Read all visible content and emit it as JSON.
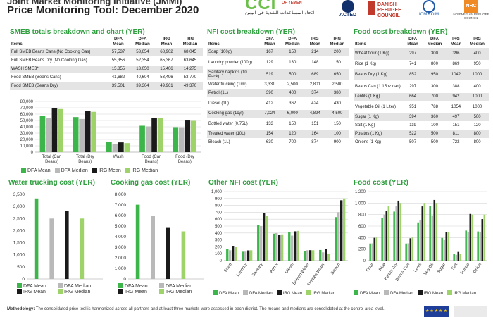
{
  "header": {
    "title_line1": "Joint Market Monitoring Initiative (JMMI)",
    "title_line2": "Price Monitoring Tool: December 2020",
    "cci_logo": "CCI",
    "cci_sub": "OF YEMEN",
    "cci_arabic": "اتحاد المساعدات النقدية في اليمن",
    "acted": "ACTED",
    "drc": "DANISH REFUGEE COUNCIL",
    "iom": "IOM • OIM",
    "nrc": "NRC",
    "nrc_sub": "NORWEGIAN REFUGEE COUNCIL"
  },
  "colors": {
    "dfa_mean": "#3cb54a",
    "dfa_median": "#b9b9b9",
    "irg_mean": "#1a1a1a",
    "irg_median": "#9ed36a",
    "section_title": "#2e9e3e"
  },
  "smeb": {
    "title": "SMEB totals breakdown and chart (YER)",
    "headers": [
      "Items",
      "DFA Mean",
      "DFA Median",
      "IRG Mean",
      "IRG Median"
    ],
    "rows": [
      [
        "Full SMEB Beans Cans (No Cooking Gas)",
        "57,537",
        "53,654",
        "68,902",
        "68,045"
      ],
      [
        "Full SMEB Beans Dry (No Cooking Gas)",
        "55,356",
        "52,354",
        "65,367",
        "63,645"
      ],
      [
        "WASH SMEB*",
        "15,855",
        "13,050",
        "15,406",
        "14,275"
      ],
      [
        "Food SMEB (Beans Cans)",
        "41,682",
        "40,604",
        "53,496",
        "53,770"
      ],
      [
        "Food SMEB (Beans Dry)",
        "39,501",
        "39,304",
        "49,961",
        "49,370"
      ]
    ]
  },
  "nfi": {
    "title": "NFI cost breakdown (YER)",
    "headers": [
      "Items",
      "DFA Mean",
      "DFA Median",
      "IRG Mean",
      "IRG Median"
    ],
    "rows": [
      [
        "Soap (100g)",
        "167",
        "150",
        "214",
        "200"
      ],
      [
        "Laundry powder (100g)",
        "129",
        "130",
        "148",
        "150"
      ],
      [
        "Sanitary napkins (10 Pack)",
        "519",
        "500",
        "689",
        "650"
      ],
      [
        "Water trucking (1m³)",
        "3,331",
        "2,500",
        "2,801",
        "2,500"
      ],
      [
        "Petrol (1L)",
        "390",
        "400",
        "374",
        "380"
      ],
      [
        "Diesel (1L)",
        "412",
        "362",
        "424",
        "430"
      ],
      [
        "Cooking gas (1cyl)",
        "7,024",
        "6,000",
        "4,894",
        "4,500"
      ],
      [
        "Bottled water (0.75L)",
        "133",
        "150",
        "151",
        "150"
      ],
      [
        "Treated water (10L)",
        "154",
        "120",
        "164",
        "100"
      ],
      [
        "Bleach (1L)",
        "630",
        "700",
        "874",
        "900"
      ]
    ]
  },
  "food": {
    "title": "Food cost breakdown (YER)",
    "headers": [
      "Items",
      "DFA Mean",
      "DFA Median",
      "IRG Mean",
      "IRG Median"
    ],
    "rows": [
      [
        "Wheat flour (1 Kg)",
        "297",
        "300",
        "396",
        "400"
      ],
      [
        "Rice (1 Kg)",
        "741",
        "800",
        "869",
        "950"
      ],
      [
        "Beans Dry (1 Kg)",
        "852",
        "950",
        "1042",
        "1000"
      ],
      [
        "Beans Can (1 15oz can)",
        "297",
        "300",
        "388",
        "400"
      ],
      [
        "Lentils (1 Kg)",
        "664",
        "700",
        "942",
        "1000"
      ],
      [
        "Vegetable Oil (1 Liter)",
        "951",
        "788",
        "1054",
        "1000"
      ],
      [
        "Sugar (1 Kg)",
        "394",
        "360",
        "497",
        "500"
      ],
      [
        "Salt (1 Kg)",
        "119",
        "100",
        "151",
        "120"
      ],
      [
        "Potatos (1 Kg)",
        "522",
        "500",
        "811",
        "800"
      ],
      [
        "Onions (1 Kg)",
        "507",
        "500",
        "722",
        "800"
      ]
    ]
  },
  "chart_titles": {
    "water": "Water trucking cost (YER)",
    "gas": "Cooking gas cost (YER)",
    "other_nfi": "Other NFI cost (YER)",
    "food": "Food cost (YER)"
  },
  "legend": {
    "dfa_mean": "DFA Mean",
    "dfa_median": "DFA Median",
    "irg_mean": "IRG Mean",
    "irg_median": "IRG Median"
  },
  "footer": {
    "label": "Methodology:",
    "text": "The consolidated price tool is harmonized across all partners and at least three markets were assessed in each district. The means and medians are consolidated at the control area level."
  },
  "chart_data": [
    {
      "type": "bar",
      "id": "smeb",
      "categories": [
        "Total (Can Beans)",
        "Total (Dry Beans)",
        "Wash",
        "Food (Can Beans)",
        "Food (Dry Beans)"
      ],
      "series": [
        {
          "name": "DFA Mean",
          "values": [
            57537,
            55356,
            15855,
            41682,
            39501
          ]
        },
        {
          "name": "DFA Median",
          "values": [
            53654,
            52354,
            13050,
            40604,
            39304
          ]
        },
        {
          "name": "IRG Mean",
          "values": [
            68902,
            65367,
            15406,
            53496,
            49961
          ]
        },
        {
          "name": "IRG Median",
          "values": [
            68045,
            63645,
            14275,
            53770,
            49370
          ]
        }
      ],
      "ylim": [
        0,
        80000
      ],
      "yticks": [
        "0",
        "10,000",
        "20,000",
        "30,000",
        "40,000",
        "50,000",
        "60,000",
        "70,000",
        "80,000"
      ],
      "grid": true,
      "legend": "bottom"
    },
    {
      "type": "bar",
      "id": "water",
      "categories": [
        ""
      ],
      "series": [
        {
          "name": "DFA Mean",
          "values": [
            3331
          ]
        },
        {
          "name": "DFA Median",
          "values": [
            2500
          ]
        },
        {
          "name": "IRG Mean",
          "values": [
            2801
          ]
        },
        {
          "name": "IRG Median",
          "values": [
            2500
          ]
        }
      ],
      "ylim": [
        0,
        3500
      ],
      "yticks": [
        "0",
        "500",
        "1,000",
        "1,500",
        "2,000",
        "2,500",
        "3,000",
        "3,500"
      ],
      "grid": false,
      "legend": "bottom"
    },
    {
      "type": "bar",
      "id": "gas",
      "categories": [
        ""
      ],
      "series": [
        {
          "name": "DFA Mean",
          "values": [
            7024
          ]
        },
        {
          "name": "DFA Median",
          "values": [
            6000
          ]
        },
        {
          "name": "IRG Mean",
          "values": [
            4894
          ]
        },
        {
          "name": "IRG Median",
          "values": [
            4500
          ]
        }
      ],
      "ylim": [
        0,
        8000
      ],
      "yticks": [
        "0",
        "1,000",
        "2,000",
        "3,000",
        "4,000",
        "5,000",
        "6,000",
        "7,000",
        "8,000"
      ],
      "grid": false,
      "legend": "bottom"
    },
    {
      "type": "bar",
      "id": "other_nfi",
      "categories": [
        "Soap",
        "Laundry",
        "Sanitary",
        "Petrol",
        "Diesel",
        "Bottled Water",
        "Treated Water",
        "Bleach"
      ],
      "series": [
        {
          "name": "DFA Mean",
          "values": [
            167,
            129,
            519,
            390,
            412,
            133,
            154,
            630
          ]
        },
        {
          "name": "DFA Median",
          "values": [
            150,
            130,
            500,
            400,
            362,
            150,
            120,
            700
          ]
        },
        {
          "name": "IRG Mean",
          "values": [
            214,
            148,
            689,
            374,
            424,
            151,
            164,
            874
          ]
        },
        {
          "name": "IRG Median",
          "values": [
            200,
            150,
            650,
            380,
            430,
            150,
            100,
            900
          ]
        }
      ],
      "ylim": [
        0,
        1000
      ],
      "yticks": [
        "0",
        "100",
        "200",
        "300",
        "400",
        "500",
        "600",
        "700",
        "800",
        "900",
        "1,000"
      ],
      "grid": true,
      "legend": "bottom"
    },
    {
      "type": "bar",
      "id": "food",
      "categories": [
        "Flour",
        "Rice",
        "Beans Dry",
        "Beans Can",
        "Lentil",
        "Veg Oil",
        "Sugar",
        "Salt",
        "Potato",
        "Onion"
      ],
      "series": [
        {
          "name": "DFA Mean",
          "values": [
            297,
            741,
            852,
            297,
            664,
            951,
            394,
            119,
            522,
            507
          ]
        },
        {
          "name": "DFA Median",
          "values": [
            300,
            800,
            950,
            300,
            700,
            788,
            360,
            100,
            500,
            500
          ]
        },
        {
          "name": "IRG Mean",
          "values": [
            396,
            869,
            1042,
            388,
            942,
            1054,
            497,
            151,
            811,
            722
          ]
        },
        {
          "name": "IRG Median",
          "values": [
            400,
            950,
            1000,
            400,
            1000,
            1000,
            500,
            120,
            800,
            800
          ]
        }
      ],
      "ylim": [
        0,
        1200
      ],
      "yticks": [
        "0",
        "200",
        "400",
        "600",
        "800",
        "1,000",
        "1,200"
      ],
      "grid": true,
      "legend": "bottom"
    }
  ]
}
